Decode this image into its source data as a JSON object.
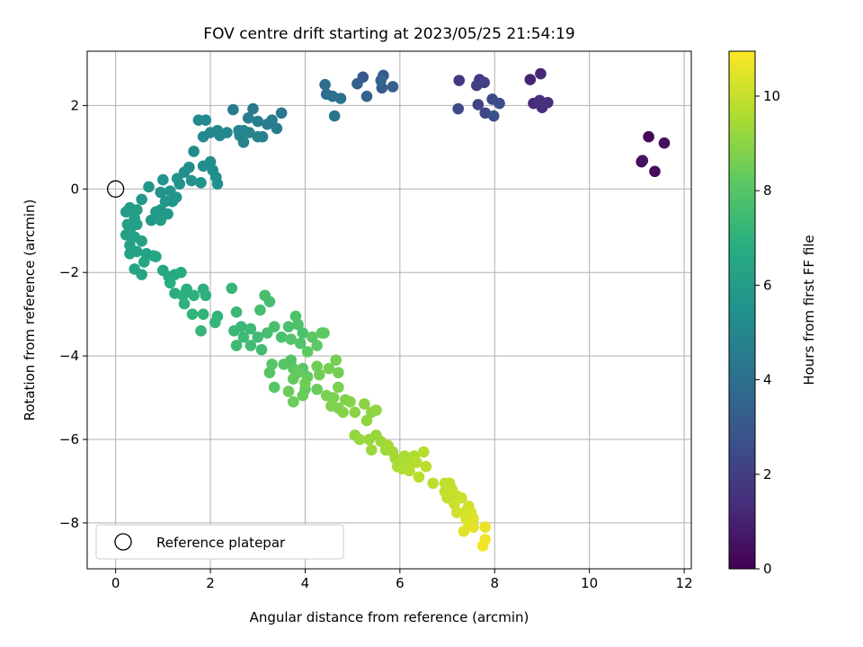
{
  "chart_data": {
    "type": "scatter",
    "title": "FOV centre drift starting at 2023/05/25 21:54:19",
    "xlabel": "Angular distance from reference (arcmin)",
    "ylabel": "Rotation from reference (arcmin)",
    "xlim": [
      -0.6,
      12.15
    ],
    "ylim": [
      -9.1,
      3.3
    ],
    "xticks": [
      0,
      2,
      4,
      6,
      8,
      10,
      12
    ],
    "yticks": [
      -8,
      -6,
      -4,
      -2,
      0,
      2
    ],
    "grid": true,
    "legend": {
      "entries": [
        "Reference platepar"
      ],
      "placement": "lower-left"
    },
    "colorbar": {
      "label": "Hours from first FF file",
      "colormap": "viridis",
      "range": [
        0,
        10.95
      ],
      "ticks": [
        0,
        2,
        4,
        6,
        8,
        10
      ]
    },
    "reference_point": {
      "x": 0,
      "y": 0
    },
    "points": [
      [
        11.1,
        0.65,
        0.1
      ],
      [
        11.25,
        1.25,
        0.2
      ],
      [
        11.38,
        0.42,
        0.3
      ],
      [
        11.58,
        1.1,
        0.4
      ],
      [
        11.12,
        0.68,
        0.5
      ],
      [
        8.75,
        2.62,
        1.1
      ],
      [
        8.97,
        2.76,
        1.2
      ],
      [
        8.82,
        2.05,
        1.3
      ],
      [
        9.0,
        1.95,
        1.4
      ],
      [
        9.12,
        2.07,
        1.5
      ],
      [
        8.95,
        2.12,
        1.6
      ],
      [
        7.25,
        2.6,
        1.8
      ],
      [
        7.68,
        2.62,
        1.9
      ],
      [
        7.62,
        2.48,
        2.0
      ],
      [
        7.78,
        2.55,
        2.1
      ],
      [
        7.65,
        2.02,
        2.2
      ],
      [
        7.8,
        1.82,
        2.3
      ],
      [
        7.95,
        2.15,
        2.4
      ],
      [
        7.23,
        1.92,
        2.5
      ],
      [
        8.1,
        2.05,
        2.6
      ],
      [
        7.98,
        1.75,
        2.7
      ],
      [
        5.22,
        2.68,
        3.0
      ],
      [
        5.65,
        2.72,
        3.1
      ],
      [
        5.62,
        2.42,
        3.2
      ],
      [
        5.85,
        2.45,
        3.3
      ],
      [
        5.1,
        2.52,
        3.4
      ],
      [
        5.3,
        2.22,
        3.5
      ],
      [
        5.6,
        2.6,
        3.6
      ],
      [
        4.42,
        2.5,
        3.8
      ],
      [
        4.45,
        2.27,
        3.9
      ],
      [
        4.58,
        2.22,
        4.0
      ],
      [
        4.75,
        2.17,
        4.1
      ],
      [
        4.62,
        1.75,
        4.2
      ],
      [
        3.5,
        1.82,
        4.3
      ],
      [
        2.9,
        1.92,
        4.4
      ],
      [
        2.48,
        1.9,
        4.5
      ],
      [
        3.3,
        1.65,
        4.5
      ],
      [
        3.2,
        1.55,
        4.6
      ],
      [
        3.4,
        1.45,
        4.6
      ],
      [
        3.0,
        1.62,
        4.6
      ],
      [
        2.8,
        1.7,
        4.7
      ],
      [
        2.7,
        1.4,
        4.7
      ],
      [
        3.1,
        1.25,
        4.7
      ],
      [
        3.0,
        1.25,
        4.8
      ],
      [
        2.82,
        1.35,
        4.8
      ],
      [
        2.62,
        1.28,
        4.9
      ],
      [
        2.6,
        1.4,
        4.9
      ],
      [
        2.7,
        1.12,
        4.9
      ],
      [
        2.35,
        1.35,
        5.0
      ],
      [
        2.15,
        1.4,
        5.0
      ],
      [
        2.2,
        1.28,
        5.0
      ],
      [
        2.0,
        1.35,
        5.1
      ],
      [
        1.85,
        1.25,
        5.1
      ],
      [
        1.75,
        1.65,
        5.1
      ],
      [
        1.9,
        1.65,
        5.2
      ],
      [
        1.65,
        0.9,
        5.2
      ],
      [
        1.55,
        0.52,
        5.3
      ],
      [
        1.45,
        0.4,
        5.3
      ],
      [
        1.85,
        0.55,
        5.3
      ],
      [
        2.0,
        0.65,
        5.4
      ],
      [
        2.05,
        0.45,
        5.4
      ],
      [
        2.12,
        0.28,
        5.4
      ],
      [
        2.15,
        0.12,
        5.4
      ],
      [
        1.8,
        0.15,
        5.5
      ],
      [
        1.6,
        0.2,
        5.5
      ],
      [
        1.35,
        0.12,
        5.5
      ],
      [
        1.3,
        0.25,
        5.6
      ],
      [
        1.0,
        0.22,
        5.6
      ],
      [
        1.15,
        -0.05,
        5.6
      ],
      [
        0.95,
        -0.08,
        5.6
      ],
      [
        1.2,
        -0.3,
        5.7
      ],
      [
        1.28,
        -0.2,
        5.7
      ],
      [
        1.05,
        -0.3,
        5.7
      ],
      [
        0.7,
        0.05,
        5.8
      ],
      [
        0.55,
        -0.25,
        5.8
      ],
      [
        0.95,
        -0.5,
        5.8
      ],
      [
        0.85,
        -0.55,
        5.9
      ],
      [
        1.1,
        -0.6,
        5.9
      ],
      [
        0.75,
        -0.75,
        5.9
      ],
      [
        0.95,
        -0.75,
        6.0
      ],
      [
        0.45,
        -0.5,
        6.0
      ],
      [
        0.3,
        -0.45,
        6.0
      ],
      [
        0.22,
        -0.55,
        6.0
      ],
      [
        0.4,
        -0.7,
        6.1
      ],
      [
        0.25,
        -0.85,
        6.1
      ],
      [
        0.45,
        -0.85,
        6.1
      ],
      [
        0.3,
        -1.0,
        6.1
      ],
      [
        0.22,
        -1.1,
        6.2
      ],
      [
        0.4,
        -1.15,
        6.2
      ],
      [
        0.55,
        -1.25,
        6.2
      ],
      [
        0.3,
        -1.35,
        6.2
      ],
      [
        0.65,
        -1.55,
        6.3
      ],
      [
        0.45,
        -1.5,
        6.3
      ],
      [
        0.3,
        -1.55,
        6.3
      ],
      [
        0.8,
        -1.6,
        6.3
      ],
      [
        0.6,
        -1.75,
        6.4
      ],
      [
        0.4,
        -1.92,
        6.4
      ],
      [
        0.55,
        -2.05,
        6.4
      ],
      [
        0.85,
        -1.62,
        6.5
      ],
      [
        1.0,
        -1.95,
        6.5
      ],
      [
        1.12,
        -2.1,
        6.6
      ],
      [
        1.25,
        -2.05,
        6.6
      ],
      [
        1.38,
        -2.0,
        6.7
      ],
      [
        1.15,
        -2.25,
        6.8
      ],
      [
        1.25,
        -2.5,
        6.8
      ],
      [
        1.5,
        -2.4,
        6.9
      ],
      [
        1.42,
        -2.55,
        6.9
      ],
      [
        1.65,
        -2.55,
        7.0
      ],
      [
        1.9,
        -2.55,
        7.0
      ],
      [
        1.85,
        -2.4,
        7.0
      ],
      [
        1.45,
        -2.75,
        7.0
      ],
      [
        1.62,
        -3.0,
        7.1
      ],
      [
        1.85,
        -3.0,
        7.1
      ],
      [
        2.15,
        -3.05,
        7.1
      ],
      [
        2.1,
        -3.2,
        7.2
      ],
      [
        2.45,
        -2.38,
        7.2
      ],
      [
        1.8,
        -3.4,
        7.2
      ],
      [
        2.55,
        -2.95,
        7.3
      ],
      [
        2.5,
        -3.4,
        7.3
      ],
      [
        2.65,
        -3.3,
        7.3
      ],
      [
        2.7,
        -3.55,
        7.4
      ],
      [
        2.55,
        -3.75,
        7.4
      ],
      [
        2.85,
        -3.35,
        7.4
      ],
      [
        2.85,
        -3.75,
        7.5
      ],
      [
        3.0,
        -3.55,
        7.5
      ],
      [
        3.08,
        -3.85,
        7.5
      ],
      [
        3.2,
        -3.45,
        7.6
      ],
      [
        3.05,
        -2.9,
        7.6
      ],
      [
        3.25,
        -2.7,
        7.6
      ],
      [
        3.15,
        -2.55,
        7.6
      ],
      [
        3.35,
        -3.3,
        7.7
      ],
      [
        3.5,
        -3.55,
        7.7
      ],
      [
        3.65,
        -3.3,
        7.7
      ],
      [
        3.8,
        -3.05,
        7.8
      ],
      [
        3.85,
        -3.25,
        7.8
      ],
      [
        3.95,
        -3.45,
        7.8
      ],
      [
        3.7,
        -3.6,
        7.9
      ],
      [
        3.9,
        -3.7,
        7.9
      ],
      [
        3.7,
        -4.1,
        7.9
      ],
      [
        3.55,
        -4.2,
        8.0
      ],
      [
        3.3,
        -4.2,
        8.0
      ],
      [
        3.25,
        -4.4,
        8.0
      ],
      [
        3.35,
        -4.75,
        8.0
      ],
      [
        3.75,
        -4.3,
        8.1
      ],
      [
        3.95,
        -4.3,
        8.1
      ],
      [
        4.15,
        -3.55,
        8.1
      ],
      [
        4.05,
        -3.9,
        8.2
      ],
      [
        4.25,
        -3.75,
        8.2
      ],
      [
        4.35,
        -3.45,
        8.2
      ],
      [
        4.4,
        -3.45,
        8.2
      ],
      [
        3.75,
        -4.55,
        8.3
      ],
      [
        3.85,
        -4.4,
        8.3
      ],
      [
        4.05,
        -4.5,
        8.3
      ],
      [
        4.0,
        -4.8,
        8.3
      ],
      [
        4.25,
        -4.8,
        8.4
      ],
      [
        3.65,
        -4.85,
        8.4
      ],
      [
        3.95,
        -4.95,
        8.4
      ],
      [
        3.75,
        -5.1,
        8.4
      ],
      [
        4.0,
        -4.65,
        8.5
      ],
      [
        4.25,
        -4.25,
        8.5
      ],
      [
        4.3,
        -4.45,
        8.5
      ],
      [
        4.5,
        -4.3,
        8.6
      ],
      [
        4.65,
        -4.1,
        8.6
      ],
      [
        4.7,
        -4.4,
        8.6
      ],
      [
        4.7,
        -4.75,
        8.7
      ],
      [
        4.45,
        -4.95,
        8.7
      ],
      [
        4.6,
        -5.0,
        8.7
      ],
      [
        4.55,
        -5.2,
        8.8
      ],
      [
        4.7,
        -5.25,
        8.8
      ],
      [
        4.85,
        -5.05,
        8.8
      ],
      [
        4.95,
        -5.1,
        8.9
      ],
      [
        4.8,
        -5.35,
        8.9
      ],
      [
        5.05,
        -5.35,
        9.0
      ],
      [
        5.25,
        -5.15,
        9.0
      ],
      [
        5.4,
        -5.35,
        9.0
      ],
      [
        5.5,
        -5.3,
        9.1
      ],
      [
        5.3,
        -5.55,
        9.1
      ],
      [
        5.05,
        -5.9,
        9.1
      ],
      [
        5.15,
        -6.0,
        9.2
      ],
      [
        5.35,
        -6.0,
        9.2
      ],
      [
        5.5,
        -5.9,
        9.2
      ],
      [
        5.6,
        -6.05,
        9.3
      ],
      [
        5.4,
        -6.25,
        9.3
      ],
      [
        5.7,
        -6.25,
        9.3
      ],
      [
        5.75,
        -6.15,
        9.4
      ],
      [
        5.85,
        -6.3,
        9.4
      ],
      [
        5.9,
        -6.45,
        9.4
      ],
      [
        6.0,
        -6.55,
        9.5
      ],
      [
        6.1,
        -6.4,
        9.5
      ],
      [
        5.95,
        -6.65,
        9.5
      ],
      [
        6.05,
        -6.7,
        9.6
      ],
      [
        6.2,
        -6.6,
        9.6
      ],
      [
        6.3,
        -6.4,
        9.6
      ],
      [
        6.2,
        -6.75,
        9.7
      ],
      [
        6.35,
        -6.55,
        9.7
      ],
      [
        6.5,
        -6.3,
        9.7
      ],
      [
        6.4,
        -6.9,
        9.8
      ],
      [
        6.55,
        -6.65,
        9.8
      ],
      [
        6.7,
        -7.05,
        9.8
      ],
      [
        6.95,
        -7.05,
        9.9
      ],
      [
        7.05,
        -7.05,
        9.9
      ],
      [
        6.95,
        -7.25,
        9.9
      ],
      [
        7.1,
        -7.2,
        10.0
      ],
      [
        7.0,
        -7.4,
        10.0
      ],
      [
        7.2,
        -7.35,
        10.0
      ],
      [
        7.3,
        -7.4,
        10.1
      ],
      [
        7.15,
        -7.55,
        10.1
      ],
      [
        7.2,
        -7.75,
        10.2
      ],
      [
        7.35,
        -7.75,
        10.2
      ],
      [
        7.45,
        -7.6,
        10.2
      ],
      [
        7.5,
        -7.75,
        10.3
      ],
      [
        7.4,
        -7.9,
        10.3
      ],
      [
        7.55,
        -7.9,
        10.4
      ],
      [
        7.45,
        -8.0,
        10.4
      ],
      [
        7.35,
        -8.2,
        10.5
      ],
      [
        7.55,
        -8.1,
        10.5
      ],
      [
        7.8,
        -8.1,
        10.6
      ],
      [
        7.8,
        -8.4,
        10.7
      ],
      [
        7.75,
        -8.55,
        10.8
      ]
    ]
  }
}
